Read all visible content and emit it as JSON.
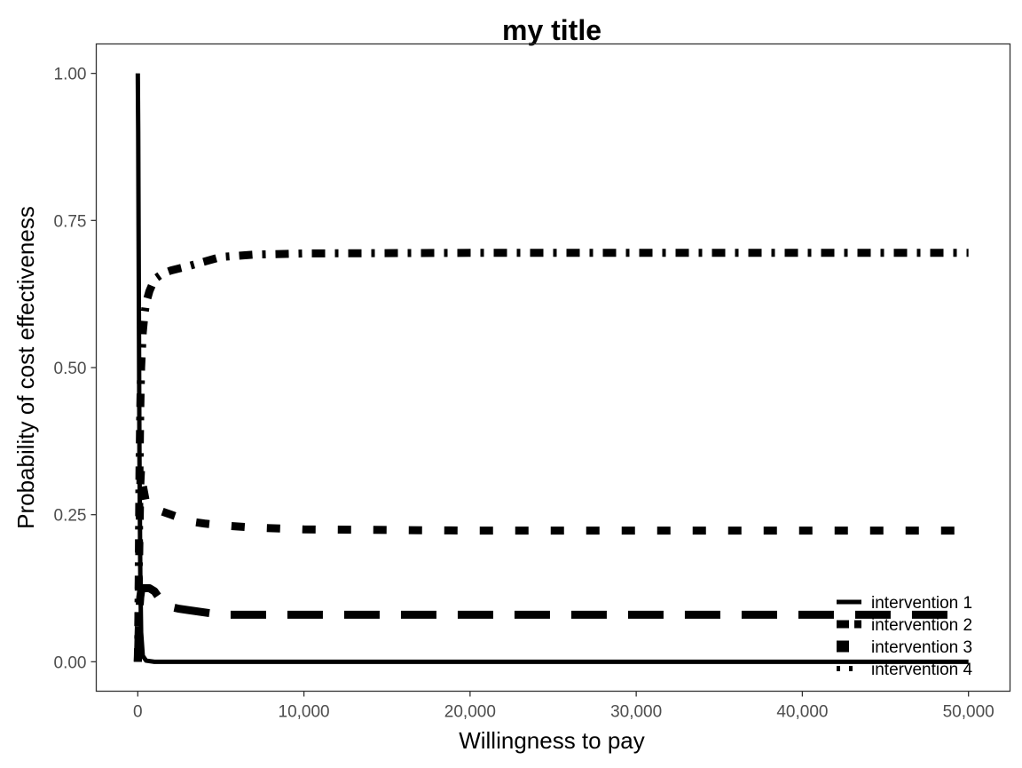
{
  "chart_data": {
    "type": "line",
    "title": "my title",
    "xlabel": "Willingness to pay",
    "ylabel": "Probability of cost effectiveness",
    "xlim": [
      -2500,
      52500
    ],
    "ylim": [
      -0.05,
      1.05
    ],
    "x_ticks": [
      {
        "value": 0,
        "label": "0"
      },
      {
        "value": 10000,
        "label": "10,000"
      },
      {
        "value": 20000,
        "label": "20,000"
      },
      {
        "value": 30000,
        "label": "30,000"
      },
      {
        "value": 40000,
        "label": "40,000"
      },
      {
        "value": 50000,
        "label": "50,000"
      }
    ],
    "y_ticks": [
      {
        "value": 0,
        "label": "0.00"
      },
      {
        "value": 0.25,
        "label": "0.25"
      },
      {
        "value": 0.5,
        "label": "0.50"
      },
      {
        "value": 0.75,
        "label": "0.75"
      },
      {
        "value": 1,
        "label": "1.00"
      }
    ],
    "grid": false,
    "legend_position": "bottom-right",
    "series": [
      {
        "name": "intervention 1",
        "line_style": "solid",
        "color": "#000000",
        "x": [
          0,
          25,
          50,
          100,
          150,
          200,
          300,
          500,
          1000,
          2000,
          3000,
          5000,
          10000,
          20000,
          30000,
          40000,
          50000
        ],
        "y": [
          1.0,
          0.9,
          0.72,
          0.35,
          0.15,
          0.05,
          0.01,
          0.002,
          0.0,
          0.0,
          0.0,
          0.0,
          0.0,
          0.0,
          0.0,
          0.0,
          0.0
        ]
      },
      {
        "name": "intervention 2",
        "line_style": "longdash",
        "color": "#000000",
        "x": [
          0,
          25,
          50,
          100,
          150,
          200,
          300,
          500,
          700,
          1000,
          1500,
          2000,
          2500,
          3000,
          5000,
          10000,
          20000,
          30000,
          40000,
          50000
        ],
        "y": [
          0.0,
          0.02,
          0.05,
          0.09,
          0.11,
          0.12,
          0.125,
          0.125,
          0.125,
          0.12,
          0.1,
          0.093,
          0.09,
          0.088,
          0.08,
          0.08,
          0.08,
          0.08,
          0.08,
          0.08
        ]
      },
      {
        "name": "intervention 3",
        "line_style": "dotted",
        "color": "#000000",
        "x": [
          0,
          25,
          50,
          100,
          150,
          200,
          300,
          500,
          700,
          1000,
          1500,
          2000,
          2500,
          3000,
          3500,
          4000,
          5000,
          7000,
          10000,
          20000,
          30000,
          40000,
          50000
        ],
        "y": [
          0.0,
          0.05,
          0.11,
          0.21,
          0.3,
          0.33,
          0.3,
          0.27,
          0.265,
          0.26,
          0.255,
          0.25,
          0.245,
          0.24,
          0.237,
          0.235,
          0.232,
          0.228,
          0.225,
          0.223,
          0.223,
          0.223,
          0.223
        ]
      },
      {
        "name": "intervention 4",
        "line_style": "dotdash",
        "color": "#000000",
        "x": [
          0,
          25,
          50,
          100,
          150,
          200,
          300,
          400,
          500,
          700,
          1000,
          1500,
          2000,
          3000,
          4000,
          5000,
          7000,
          10000,
          20000,
          30000,
          40000,
          50000
        ],
        "y": [
          0.0,
          0.03,
          0.12,
          0.32,
          0.43,
          0.5,
          0.56,
          0.59,
          0.61,
          0.63,
          0.65,
          0.66,
          0.665,
          0.672,
          0.68,
          0.688,
          0.692,
          0.694,
          0.695,
          0.695,
          0.695,
          0.695
        ]
      }
    ]
  }
}
